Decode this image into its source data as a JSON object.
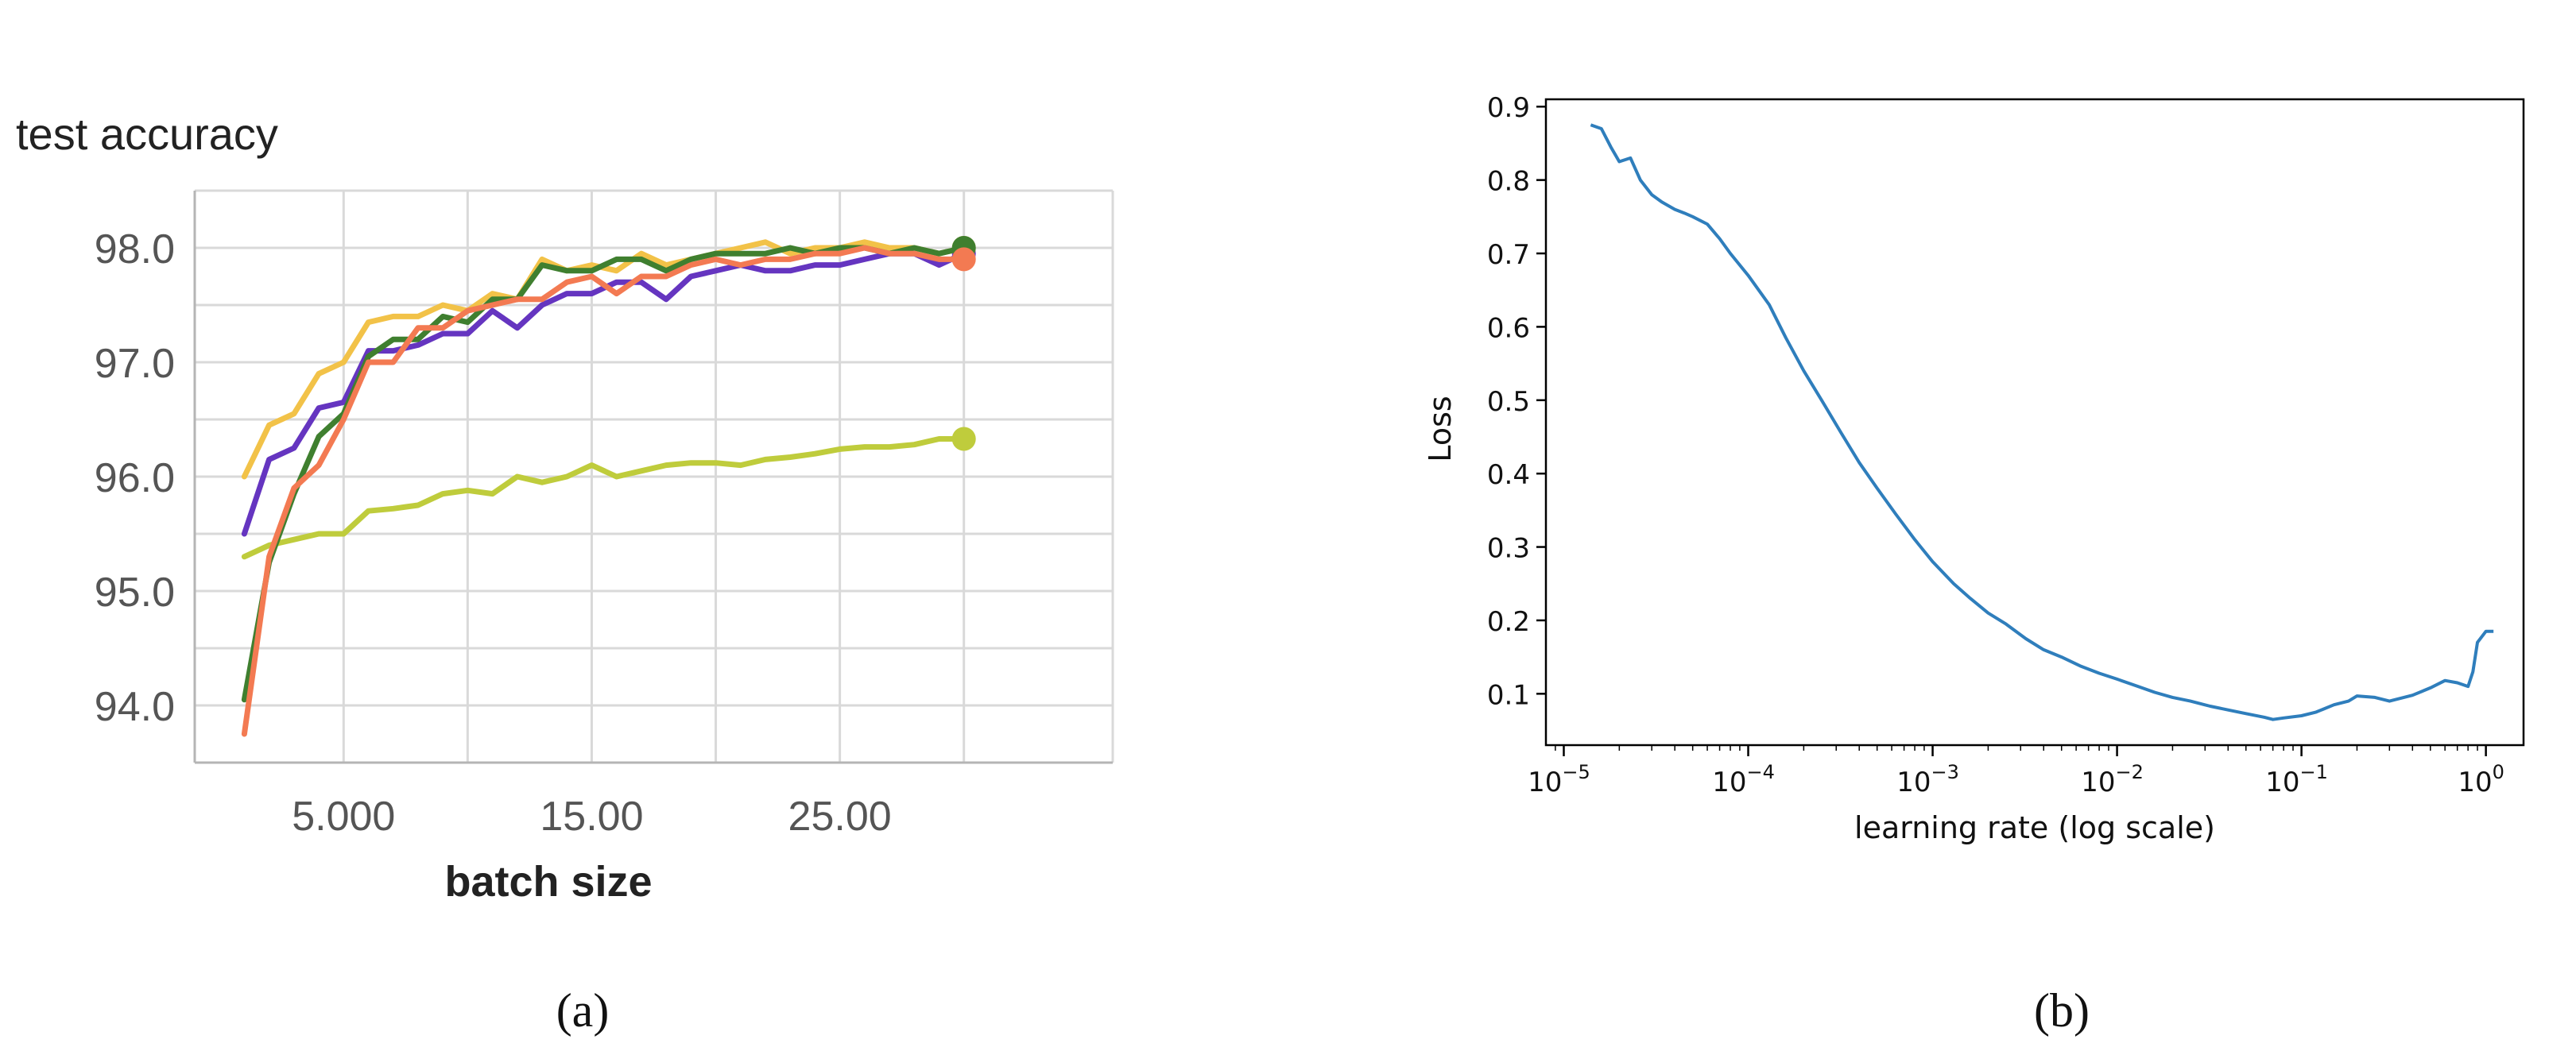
{
  "figure": {
    "label_a": "(a)",
    "label_b": "(b)"
  },
  "chart_data": [
    {
      "type": "line",
      "title": "test accuracy",
      "xlabel": "batch size",
      "ylabel": "",
      "xlim": [
        -1,
        36
      ],
      "ylim": [
        93.5,
        98.5
      ],
      "x_ticks": [
        5,
        15,
        25
      ],
      "x_tick_labels": [
        "5.000",
        "15.00",
        "25.00"
      ],
      "y_ticks": [
        94,
        95,
        96,
        97,
        98
      ],
      "y_tick_labels": [
        "94.0",
        "95.0",
        "96.0",
        "97.0",
        "98.0"
      ],
      "grid": true,
      "colors": [
        "#3f7f2f",
        "#f2c248",
        "#6535c0",
        "#f37a52",
        "#bfcc3c"
      ],
      "x": [
        1,
        2,
        3,
        4,
        5,
        6,
        7,
        8,
        9,
        10,
        11,
        12,
        13,
        14,
        15,
        16,
        17,
        18,
        19,
        20,
        21,
        22,
        23,
        24,
        25,
        26,
        27,
        28,
        29,
        30
      ],
      "series": [
        {
          "values": [
            94.05,
            95.25,
            95.85,
            96.35,
            96.55,
            97.05,
            97.2,
            97.2,
            97.4,
            97.35,
            97.55,
            97.55,
            97.85,
            97.8,
            97.8,
            97.9,
            97.9,
            97.8,
            97.9,
            97.95,
            97.95,
            97.95,
            98.0,
            97.95,
            98.0,
            98.0,
            97.95,
            98.0,
            97.95,
            98.0
          ]
        },
        {
          "values": [
            96.0,
            96.45,
            96.55,
            96.9,
            97.0,
            97.35,
            97.4,
            97.4,
            97.5,
            97.45,
            97.6,
            97.55,
            97.9,
            97.8,
            97.85,
            97.8,
            97.95,
            97.85,
            97.9,
            97.95,
            98.0,
            98.05,
            97.95,
            98.0,
            98.0,
            98.05,
            98.0,
            98.0,
            97.95,
            98.0
          ]
        },
        {
          "values": [
            95.5,
            96.15,
            96.25,
            96.6,
            96.65,
            97.1,
            97.1,
            97.15,
            97.25,
            97.25,
            97.45,
            97.3,
            97.5,
            97.6,
            97.6,
            97.7,
            97.7,
            97.55,
            97.75,
            97.8,
            97.85,
            97.8,
            97.8,
            97.85,
            97.85,
            97.9,
            97.95,
            97.95,
            97.85,
            97.95
          ]
        },
        {
          "values": [
            93.75,
            95.3,
            95.9,
            96.1,
            96.5,
            97.0,
            97.0,
            97.3,
            97.3,
            97.45,
            97.5,
            97.55,
            97.55,
            97.7,
            97.75,
            97.6,
            97.75,
            97.75,
            97.85,
            97.9,
            97.85,
            97.9,
            97.9,
            97.95,
            97.95,
            98.0,
            97.95,
            97.95,
            97.9,
            97.9
          ]
        },
        {
          "values": [
            95.3,
            95.4,
            95.45,
            95.5,
            95.5,
            95.7,
            95.72,
            95.75,
            95.85,
            95.88,
            95.85,
            96.0,
            95.95,
            96.0,
            96.1,
            96.0,
            96.05,
            96.1,
            96.12,
            96.12,
            96.1,
            96.15,
            96.17,
            96.2,
            96.24,
            96.26,
            96.26,
            96.28,
            96.33,
            96.33
          ]
        }
      ]
    },
    {
      "type": "line",
      "title": "",
      "xlabel": "learning rate (log scale)",
      "ylabel": "Loss",
      "xscale": "log",
      "xlim": [
        8e-06,
        1.6
      ],
      "ylim": [
        0.03,
        0.91
      ],
      "x_tick_values": [
        1e-05,
        0.0001,
        0.001,
        0.01,
        0.1,
        1
      ],
      "x_tick_exponents": [
        "−5",
        "−4",
        "−3",
        "−2",
        "−1",
        "0"
      ],
      "x_tick_base": "10",
      "y_ticks": [
        0.1,
        0.2,
        0.3,
        0.4,
        0.5,
        0.6,
        0.7,
        0.8,
        0.9
      ],
      "y_tick_labels": [
        "0.1",
        "0.2",
        "0.3",
        "0.4",
        "0.5",
        "0.6",
        "0.7",
        "0.8",
        "0.9"
      ],
      "grid": false,
      "color": "#2f7ebc",
      "x": [
        1.4e-05,
        1.6e-05,
        1.8e-05,
        2e-05,
        2.3e-05,
        2.6e-05,
        3e-05,
        3.4e-05,
        4e-05,
        4.5e-05,
        5e-05,
        6e-05,
        7e-05,
        8e-05,
        0.0001,
        0.00013,
        0.00016,
        0.0002,
        0.00025,
        0.00032,
        0.0004,
        0.0005,
        0.00063,
        0.0008,
        0.001,
        0.0013,
        0.0016,
        0.002,
        0.0025,
        0.0032,
        0.004,
        0.005,
        0.0063,
        0.008,
        0.01,
        0.013,
        0.016,
        0.02,
        0.025,
        0.032,
        0.04,
        0.05,
        0.063,
        0.07,
        0.08,
        0.1,
        0.12,
        0.15,
        0.18,
        0.2,
        0.25,
        0.3,
        0.4,
        0.5,
        0.6,
        0.7,
        0.8,
        0.85,
        0.9,
        1.0,
        1.1
      ],
      "values": [
        0.875,
        0.87,
        0.845,
        0.825,
        0.83,
        0.8,
        0.78,
        0.77,
        0.76,
        0.755,
        0.75,
        0.74,
        0.72,
        0.7,
        0.67,
        0.63,
        0.585,
        0.54,
        0.5,
        0.455,
        0.415,
        0.38,
        0.345,
        0.31,
        0.28,
        0.25,
        0.23,
        0.21,
        0.195,
        0.175,
        0.16,
        0.15,
        0.138,
        0.128,
        0.12,
        0.11,
        0.102,
        0.095,
        0.09,
        0.083,
        0.078,
        0.073,
        0.068,
        0.065,
        0.067,
        0.07,
        0.075,
        0.085,
        0.09,
        0.097,
        0.095,
        0.09,
        0.098,
        0.108,
        0.118,
        0.115,
        0.11,
        0.13,
        0.17,
        0.185,
        0.185
      ]
    }
  ]
}
